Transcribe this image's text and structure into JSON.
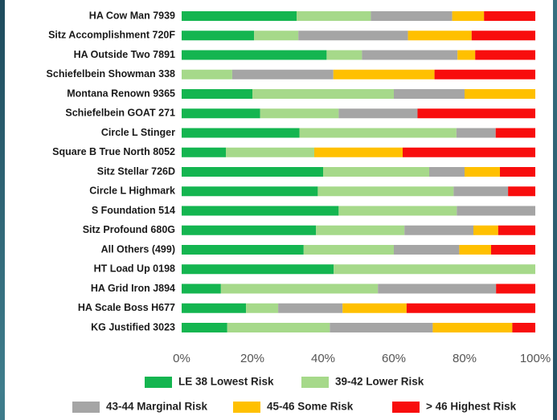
{
  "chart_data": {
    "type": "stacked-bar-horizontal",
    "categories": [
      "HA Cow Man 7939",
      "Sitz Accomplishment 720F",
      "HA Outside Two 7891",
      "Schiefelbein Showman 338",
      "Montana Renown 9365",
      "Schiefelbein GOAT 271",
      "Circle L Stinger",
      "Square B True North 8052",
      "Sitz Stellar 726D",
      "Circle L Highmark",
      "S Foundation 514",
      "Sitz Profound 680G",
      "All Others (499)",
      "HT Load Up 0198",
      "HA Grid Iron J894",
      "HA Scale Boss H677",
      "KG Justified 3023"
    ],
    "series": [
      {
        "name": "LE 38 Lowest Risk",
        "color": "#14b550",
        "values": [
          32.5,
          20.5,
          41,
          0,
          20,
          22.2,
          33.3,
          12.5,
          40,
          38.5,
          44.4,
          38,
          34.5,
          43,
          11.1,
          18.2,
          12.9
        ]
      },
      {
        "name": "39-42 Lower Risk",
        "color": "#a6d98a",
        "values": [
          21,
          12.5,
          10,
          14.3,
          40,
          22.2,
          44.4,
          25,
          30,
          38.4,
          33.4,
          25,
          25.5,
          57,
          44.4,
          9.1,
          29
        ]
      },
      {
        "name": "43-44 Marginal Risk",
        "color": "#a5a5a5",
        "values": [
          23,
          31,
          27,
          28.6,
          20,
          22.3,
          11.1,
          0,
          10,
          15.4,
          22.2,
          19.5,
          18.5,
          0,
          33.4,
          18.2,
          29.1
        ]
      },
      {
        "name": "45-46 Some Risk",
        "color": "#ffc000",
        "values": [
          9,
          18,
          5,
          28.6,
          20,
          0,
          0,
          25,
          10,
          0,
          0,
          7,
          9,
          0,
          0,
          18.1,
          22.5
        ]
      },
      {
        "name": "> 46 Highest Risk",
        "color": "#f80d0d",
        "values": [
          14.5,
          18,
          17,
          28.5,
          0,
          33.3,
          11.2,
          37.5,
          10,
          7.7,
          0,
          10.5,
          12.5,
          0,
          11.1,
          36.4,
          6.5
        ]
      }
    ],
    "xlim": [
      0,
      100
    ],
    "xticks": [
      {
        "value": 0,
        "label": "0%"
      },
      {
        "value": 20,
        "label": "20%"
      },
      {
        "value": 40,
        "label": "40%"
      },
      {
        "value": 60,
        "label": "60%"
      },
      {
        "value": 80,
        "label": "80%"
      },
      {
        "value": 100,
        "label": "100%"
      }
    ]
  }
}
